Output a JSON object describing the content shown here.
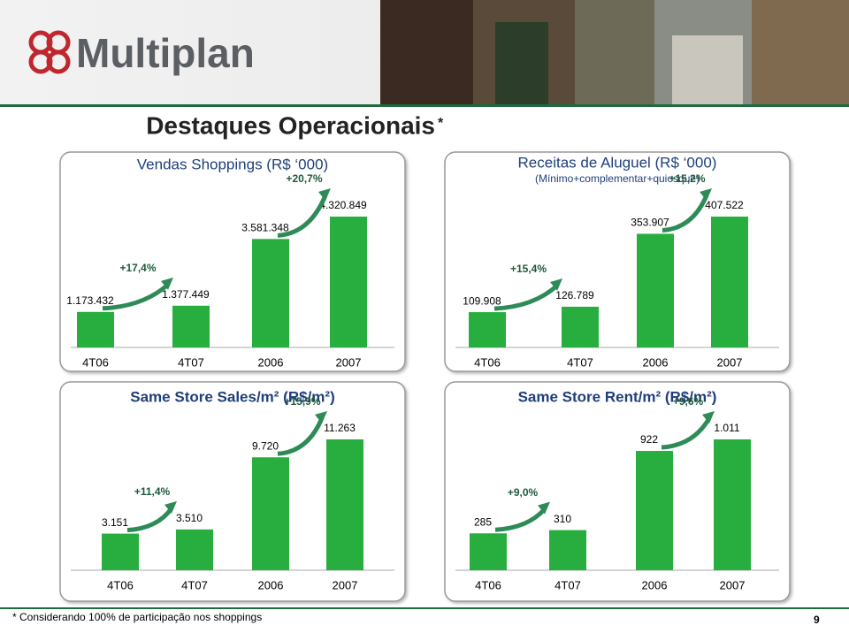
{
  "header": {
    "logo": "Multiplan",
    "title": "Destaques Operacionais",
    "title_mark": "*"
  },
  "chart_data": [
    {
      "type": "bar",
      "title": "Vendas Shoppings (R$ ‘000)",
      "categories": [
        "4T06",
        "4T07",
        "2006",
        "2007"
      ],
      "values": [
        1173432,
        1377449,
        3581348,
        4320849
      ],
      "value_labels": [
        "1.173.432",
        "1.377.449",
        "3.581.348",
        "4.320.849"
      ],
      "growth_labels": [
        "+17,4%",
        "+20,7%"
      ],
      "color": "#27ae3f"
    },
    {
      "type": "bar",
      "title": "Receitas de Aluguel (R$ ‘000)",
      "subtitle": "(Mínimo+complementar+quiosque)",
      "categories": [
        "4T06",
        "4T07",
        "2006",
        "2007"
      ],
      "values": [
        109908,
        126789,
        353907,
        407522
      ],
      "value_labels": [
        "109.908",
        "126.789",
        "353.907",
        "407.522"
      ],
      "growth_labels": [
        "+15,4%",
        "+15,2%"
      ],
      "color": "#27ae3f"
    },
    {
      "type": "bar",
      "title": "Same Store Sales/m² (R$/m²)",
      "categories": [
        "4T06",
        "4T07",
        "2006",
        "2007"
      ],
      "values": [
        3151,
        3510,
        9720,
        11263
      ],
      "value_labels": [
        "3.151",
        "3.510",
        "9.720",
        "11.263"
      ],
      "growth_labels": [
        "+11,4%",
        "+15,9%"
      ],
      "color": "#27ae3f"
    },
    {
      "type": "bar",
      "title": "Same Store Rent/m² (R$/m²)",
      "categories": [
        "4T06",
        "4T07",
        "2006",
        "2007"
      ],
      "values": [
        285,
        310,
        922,
        1011
      ],
      "value_labels": [
        "285",
        "310",
        "922",
        "1.011"
      ],
      "growth_labels": [
        "+9,0%",
        "+9,6%"
      ],
      "color": "#27ae3f"
    }
  ],
  "footer": {
    "note": "* Considerando 100% de participação nos shoppings",
    "page": 9
  }
}
